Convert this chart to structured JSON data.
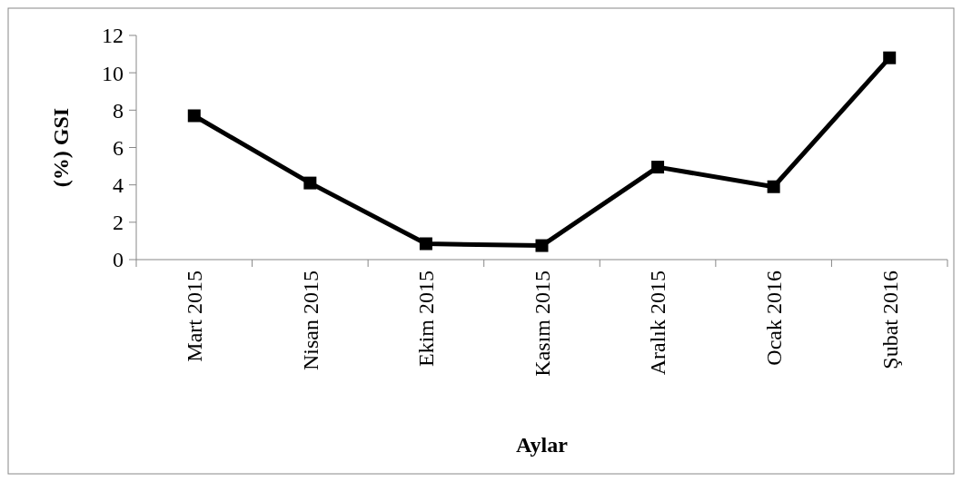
{
  "chart_data": {
    "type": "line",
    "xlabel": "Aylar",
    "ylabel": "(%) GSI",
    "categories": [
      "Mart 2015",
      "Nisan 2015",
      "Ekim 2015",
      "Kasım 2015",
      "Aralık 2015",
      "Ocak 2016",
      "Şubat 2016"
    ],
    "series": [
      {
        "color": "#000000",
        "values": [
          7.7,
          4.1,
          0.85,
          0.75,
          4.95,
          3.9,
          10.8
        ]
      }
    ],
    "ylim": [
      0,
      12
    ],
    "yticks": [
      0,
      2,
      4,
      6,
      8,
      10,
      12
    ],
    "grid": false,
    "marker": "square",
    "line_style": "solid"
  }
}
